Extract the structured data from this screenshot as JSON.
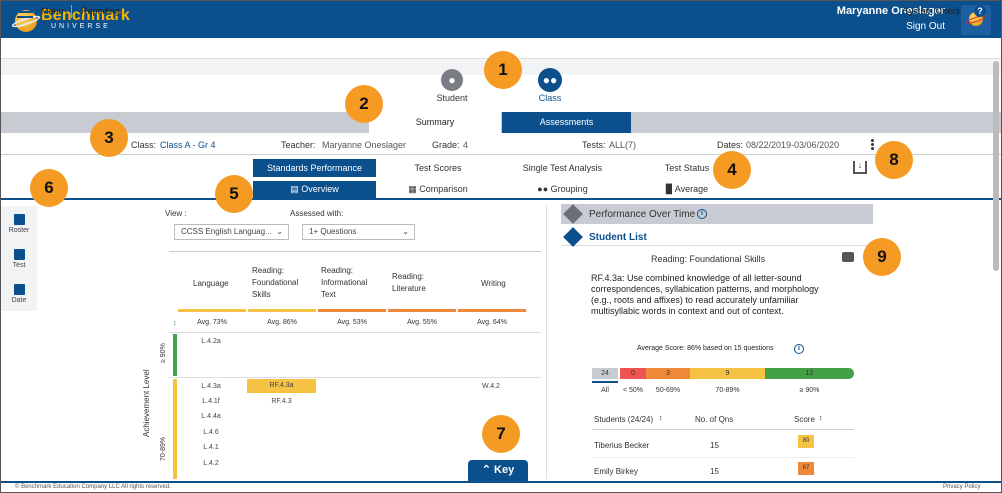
{
  "header": {
    "brand": "Benchmark",
    "brand_sub": "UNIVERSE",
    "user_name": "Maryanne Oneslager",
    "sign_out": "Sign Out"
  },
  "menubar": {
    "menu": "Menu",
    "reporting": "Reporting",
    "system_check": "System Check",
    "help": "?"
  },
  "toggle": {
    "student": "Student",
    "class": "Class"
  },
  "view_tabs": {
    "summary": "Summary",
    "assessments": "Assessments"
  },
  "info": {
    "class_label": "Class:",
    "class_value": "Class A - Gr 4",
    "teacher_label": "Teacher:",
    "teacher_value": "Maryanne Oneslager",
    "grade_label": "Grade:",
    "grade_value": "4",
    "tests_label": "Tests:",
    "tests_value": "ALL(7)",
    "dates_label": "Dates:",
    "dates_value": "08/22/2019-03/06/2020"
  },
  "report_tabs": [
    "Standards Performance",
    "Test Scores",
    "Single Test Analysis",
    "Test Status"
  ],
  "sub_tabs": [
    "Overview",
    "Comparison",
    "Grouping",
    "Average"
  ],
  "side_rail": [
    "Roster",
    "Test",
    "Date"
  ],
  "filters": {
    "view_label": "View :",
    "view_value": "CCSS English Languag...",
    "assessed_label": "Assessed with:",
    "assessed_value": "1+ Questions"
  },
  "domains": [
    {
      "name": "Language",
      "avg": "Avg. 73%",
      "color": "#f6c244"
    },
    {
      "name": "Reading: Foundational Skills",
      "avg": "Avg. 86%",
      "color": "#f6c244"
    },
    {
      "name": "Reading: Informational Text",
      "avg": "Avg. 53%",
      "color": "#f08a3a"
    },
    {
      "name": "Reading: Literature",
      "avg": "Avg. 55%",
      "color": "#f08a3a"
    },
    {
      "name": "Writing",
      "avg": "Avg. 64%",
      "color": "#f08a3a"
    }
  ],
  "achievement": {
    "axis_label": "Achievement Level",
    "level_90": "≥ 90%",
    "level_70": "70-89%"
  },
  "cells": {
    "l42a": "L.4.2a",
    "l43a": "L.4.3a",
    "l41f": "L.4.1f",
    "l44a": "L.4.4a",
    "l46": "L.4.6",
    "l41": "L.4.1",
    "l42": "L.4.2",
    "rf43a": "RF.4.3a",
    "rf43": "RF.4.3",
    "w42": "W.4.2"
  },
  "key_button": "Key",
  "right": {
    "perf_over_time": "Performance Over Time",
    "student_list": "Student List",
    "standard_title": "Reading: Foundational Skills",
    "description": "RF.4.3a: Use combined knowledge of all letter-sound correspondences, syllabication patterns, and morphology (e.g., roots and affixes) to read accurately unfamiliar multisyllabic words in context and out of context.",
    "average_score": "Average Score: 86% based on 15 questions",
    "distribution": [
      {
        "count": "24",
        "label": "All",
        "color": "#c8cbd1"
      },
      {
        "count": "0",
        "label": "< 50%",
        "color": "#ef5350"
      },
      {
        "count": "3",
        "label": "50-69%",
        "color": "#f08a3a"
      },
      {
        "count": "9",
        "label": "70-89%",
        "color": "#f6c244"
      },
      {
        "count": "12",
        "label": "≥ 90%",
        "color": "#43a047"
      }
    ],
    "table_headers": {
      "students": "Students (24/24)",
      "qns": "No. of Qns",
      "score": "Score"
    },
    "rows": [
      {
        "name": "Tiberius Becker",
        "qns": "15",
        "score": "80",
        "color": "#f6c244"
      },
      {
        "name": "Emily Birkey",
        "qns": "15",
        "score": "67",
        "color": "#f08a3a"
      }
    ]
  },
  "footer": {
    "copyright": "© Benchmark Education Company LLC All rights reserved.",
    "privacy": "Privacy Policy"
  },
  "callouts": [
    "1",
    "2",
    "3",
    "4",
    "5",
    "6",
    "7",
    "8",
    "9"
  ]
}
